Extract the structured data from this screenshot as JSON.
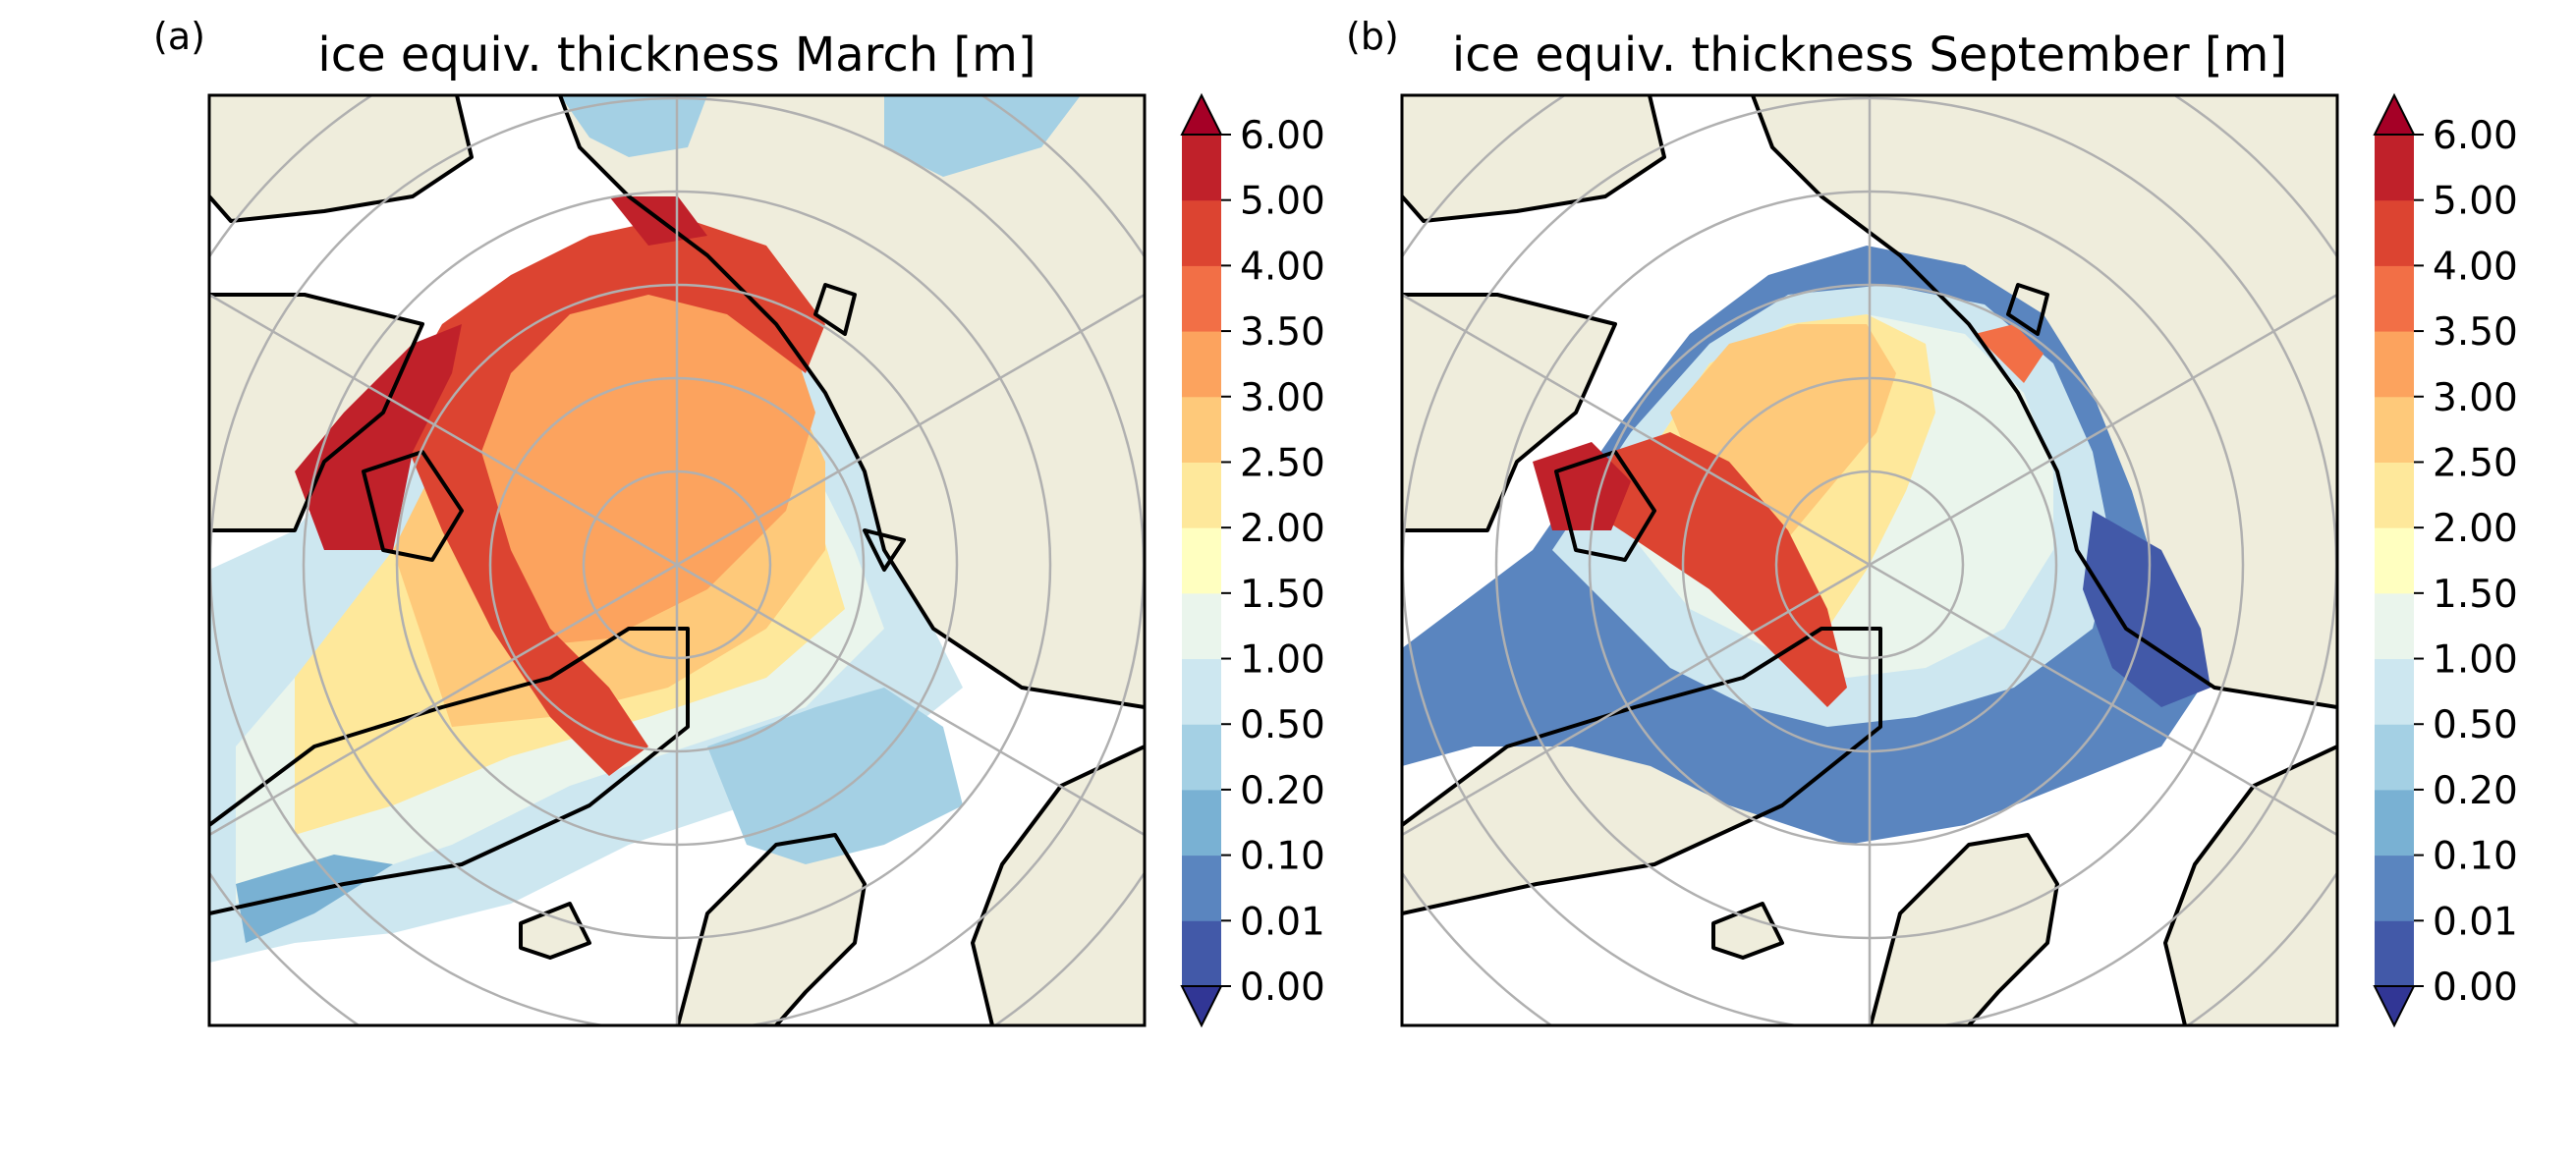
{
  "colors": {
    "land": "#efeddc",
    "ocean": "#ffffff",
    "coast": "#000000",
    "gridlines": "#b0b0b0",
    "scale": [
      "#313695",
      "#4259a8",
      "#5a85bf",
      "#79b1d3",
      "#a4d0e4",
      "#cde7f0",
      "#eaf5ec",
      "#ffffc0",
      "#fee89b",
      "#fec97a",
      "#fca35e",
      "#f26f46",
      "#dc4431",
      "#c0212a",
      "#a50026"
    ]
  },
  "colorbar": {
    "ticks": [
      "0.00",
      "0.01",
      "0.10",
      "0.20",
      "0.50",
      "1.00",
      "1.50",
      "2.00",
      "2.50",
      "3.00",
      "3.50",
      "4.00",
      "5.00",
      "6.00"
    ],
    "extend": "both"
  },
  "panels": [
    {
      "letter": "(a)",
      "title": "ice equiv. thickness March [m]",
      "month": "March"
    },
    {
      "letter": "(b)",
      "title": "ice equiv. thickness September [m]",
      "month": "September"
    }
  ]
}
